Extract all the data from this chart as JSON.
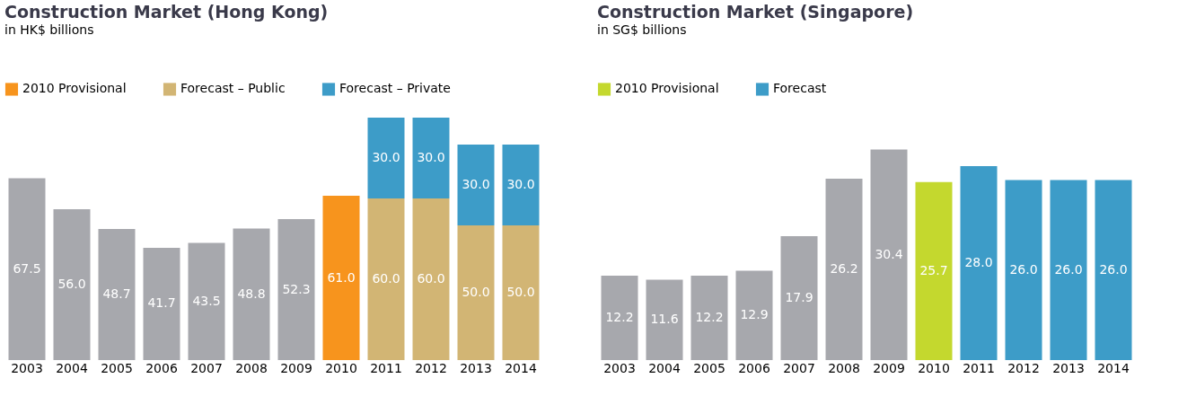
{
  "chart_data": [
    {
      "type": "bar",
      "title": "Construction Market (Hong Kong)",
      "subtitle": "in HK$ billions",
      "categories": [
        "2003",
        "2004",
        "2005",
        "2006",
        "2007",
        "2008",
        "2009",
        "2010",
        "2011",
        "2012",
        "2013",
        "2014"
      ],
      "stacked": true,
      "series": [
        {
          "color": "#a7a8ad",
          "values": [
            67.5,
            56.0,
            48.7,
            41.7,
            43.5,
            48.8,
            52.3,
            null,
            null,
            null,
            null,
            null
          ],
          "value_labels": [
            "67.5",
            "56.0",
            "48.7",
            "41.7",
            "43.5",
            "48.8",
            "52.3",
            null,
            null,
            null,
            null,
            null
          ]
        },
        {
          "name": "2010 Provisional",
          "color": "#f7941d",
          "values": [
            null,
            null,
            null,
            null,
            null,
            null,
            null,
            61.0,
            null,
            null,
            null,
            null
          ],
          "value_labels": [
            null,
            null,
            null,
            null,
            null,
            null,
            null,
            "61.0",
            null,
            null,
            null,
            null
          ]
        },
        {
          "name": "Forecast – Public",
          "color": "#d2b574",
          "values": [
            null,
            null,
            null,
            null,
            null,
            null,
            null,
            null,
            60.0,
            60.0,
            50.0,
            50.0
          ],
          "value_labels": [
            null,
            null,
            null,
            null,
            null,
            null,
            null,
            null,
            "60.0",
            "60.0",
            "50.0",
            "50.0"
          ]
        },
        {
          "name": "Forecast – Private",
          "color": "#3d9cc8",
          "values": [
            null,
            null,
            null,
            null,
            null,
            null,
            null,
            null,
            30.0,
            30.0,
            30.0,
            30.0
          ],
          "value_labels": [
            null,
            null,
            null,
            null,
            null,
            null,
            null,
            null,
            "30.0",
            "30.0",
            "30.0",
            "30.0"
          ]
        }
      ],
      "legend": "top left",
      "tick_labels": "x"
    },
    {
      "type": "bar",
      "title": "Construction Market (Singapore)",
      "subtitle": "in SG$ billions",
      "categories": [
        "2003",
        "2004",
        "2005",
        "2006",
        "2007",
        "2008",
        "2009",
        "2010",
        "2011",
        "2012",
        "2013",
        "2014"
      ],
      "series": [
        {
          "color": "#a7a8ad",
          "values": [
            12.2,
            11.6,
            12.2,
            12.9,
            17.9,
            26.2,
            30.4,
            null,
            null,
            null,
            null,
            null
          ],
          "value_labels": [
            "12.2",
            "11.6",
            "12.2",
            "12.9",
            "17.9",
            "26.2",
            "30.4",
            null,
            null,
            null,
            null,
            null
          ]
        },
        {
          "name": "2010 Provisional",
          "color": "#c4d82e",
          "values": [
            null,
            null,
            null,
            null,
            null,
            null,
            null,
            25.7,
            null,
            null,
            null,
            null
          ],
          "value_labels": [
            null,
            null,
            null,
            null,
            null,
            null,
            null,
            "25.7",
            null,
            null,
            null,
            null
          ]
        },
        {
          "name": "Forecast",
          "color": "#3d9cc8",
          "values": [
            null,
            null,
            null,
            null,
            null,
            null,
            null,
            null,
            28.0,
            26.0,
            26.0,
            26.0
          ],
          "value_labels": [
            null,
            null,
            null,
            null,
            null,
            null,
            null,
            null,
            "28.0",
            "26.0",
            "26.0",
            "26.0"
          ]
        }
      ],
      "legend": "top left",
      "tick_labels": "x"
    }
  ]
}
